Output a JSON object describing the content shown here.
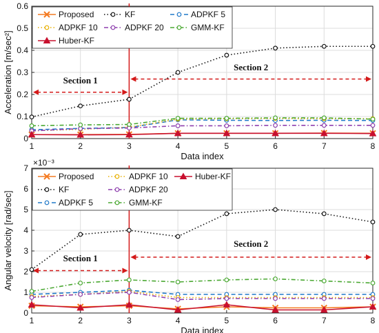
{
  "chart_data": [
    {
      "type": "line",
      "x": [
        1,
        2,
        3,
        4,
        5,
        6,
        7,
        8
      ],
      "xlabel": "Data index",
      "ylabel": "Acceleration [m/sec²]",
      "xlim": [
        1,
        8
      ],
      "ylim": [
        0,
        0.6
      ],
      "yticks": [
        "0",
        "0.1",
        "0.2",
        "0.3",
        "0.4",
        "0.5",
        "0.6"
      ],
      "grid": true,
      "legend_position": "top-left",
      "series": [
        {
          "name": "Proposed",
          "color": "#f47a20",
          "marker": "x",
          "dash": "solid",
          "values": [
            0.018,
            0.018,
            0.019,
            0.024,
            0.024,
            0.024,
            0.025,
            0.024
          ]
        },
        {
          "name": "KF",
          "color": "#111111",
          "marker": "o",
          "dash": "dot",
          "values": [
            0.098,
            0.148,
            0.178,
            0.3,
            0.378,
            0.41,
            0.418,
            0.418
          ]
        },
        {
          "name": "ADPKF 5",
          "color": "#1f78c8",
          "marker": "o",
          "dash": "dash",
          "values": [
            0.04,
            0.046,
            0.05,
            0.085,
            0.083,
            0.082,
            0.083,
            0.082
          ]
        },
        {
          "name": "ADPKF 10",
          "color": "#e8b000",
          "marker": "o",
          "dash": "dot",
          "values": [
            0.035,
            0.042,
            0.052,
            0.088,
            0.09,
            0.091,
            0.09,
            0.09
          ]
        },
        {
          "name": "ADPKF 20",
          "color": "#8e3fae",
          "marker": "o",
          "dash": "dashdot",
          "values": [
            0.035,
            0.045,
            0.048,
            0.058,
            0.058,
            0.06,
            0.06,
            0.06
          ]
        },
        {
          "name": "GMM-KF",
          "color": "#4aa832",
          "marker": "o",
          "dash": "dashdot",
          "values": [
            0.058,
            0.062,
            0.064,
            0.092,
            0.092,
            0.094,
            0.094,
            0.088
          ]
        },
        {
          "name": "Huber-KF",
          "color": "#c8102e",
          "marker": "^",
          "dash": "solid",
          "values": [
            0.018,
            0.017,
            0.018,
            0.024,
            0.024,
            0.024,
            0.024,
            0.023
          ]
        }
      ],
      "annotations": [
        {
          "text": "Section 1",
          "x": 2,
          "y": 0.25
        },
        {
          "text": "Section 2",
          "x": 5.5,
          "y": 0.31
        }
      ],
      "divider_x": 3,
      "arrow_y_section1": 0.21,
      "arrow_y_section2": 0.27
    },
    {
      "type": "line",
      "x": [
        1,
        2,
        3,
        4,
        5,
        6,
        7,
        8
      ],
      "xlabel": "Data index",
      "ylabel": "Angular velocity [rad/sec]",
      "exponent_label": "×10⁻³",
      "xlim": [
        1,
        8
      ],
      "ylim": [
        0,
        7
      ],
      "yticks": [
        "0",
        "1",
        "2",
        "3",
        "4",
        "5",
        "6",
        "7"
      ],
      "grid": true,
      "legend_position": "top-left",
      "series": [
        {
          "name": "Proposed",
          "color": "#f47a20",
          "marker": "x",
          "dash": "solid",
          "values": [
            0.35,
            0.3,
            0.35,
            0.2,
            0.3,
            0.25,
            0.25,
            0.3
          ]
        },
        {
          "name": "KF",
          "color": "#111111",
          "marker": "o",
          "dash": "dot",
          "values": [
            2.1,
            3.8,
            4.0,
            3.7,
            4.8,
            5.0,
            4.8,
            4.4
          ]
        },
        {
          "name": "ADPKF 5",
          "color": "#1f78c8",
          "marker": "o",
          "dash": "dash",
          "values": [
            0.9,
            1.0,
            1.1,
            0.9,
            0.9,
            0.9,
            0.9,
            0.9
          ]
        },
        {
          "name": "ADPKF 10",
          "color": "#e8b000",
          "marker": "o",
          "dash": "dot",
          "values": [
            0.8,
            0.9,
            1.05,
            0.75,
            0.75,
            0.75,
            0.75,
            0.75
          ]
        },
        {
          "name": "ADPKF 20",
          "color": "#8e3fae",
          "marker": "o",
          "dash": "dashdot",
          "values": [
            0.75,
            0.9,
            1.0,
            0.65,
            0.7,
            0.7,
            0.7,
            0.7
          ]
        },
        {
          "name": "GMM-KF",
          "color": "#4aa832",
          "marker": "o",
          "dash": "dashdot",
          "values": [
            1.05,
            1.45,
            1.6,
            1.5,
            1.6,
            1.65,
            1.55,
            1.45
          ]
        },
        {
          "name": "Huber-KF",
          "color": "#c8102e",
          "marker": "^",
          "dash": "solid",
          "values": [
            0.4,
            0.25,
            0.4,
            0.15,
            0.4,
            0.15,
            0.15,
            0.3
          ]
        }
      ],
      "annotations": [
        {
          "text": "Section 1",
          "x": 2,
          "y": 2.5
        },
        {
          "text": "Section 2",
          "x": 5.5,
          "y": 3.2
        }
      ],
      "divider_x": 3,
      "arrow_y_section1": 2.05,
      "arrow_y_section2": 2.7
    }
  ],
  "legend_top": [
    [
      "Proposed",
      "KF",
      "ADPKF 5"
    ],
    [
      "ADPKF 10",
      "ADPKF 20",
      "GMM-KF"
    ],
    [
      "Huber-KF"
    ]
  ],
  "legend_bottom": [
    [
      "Proposed",
      "ADPKF 10",
      "Huber-KF"
    ],
    [
      "KF",
      "ADPKF 20"
    ],
    [
      "ADPKF 5",
      "GMM-KF"
    ]
  ]
}
